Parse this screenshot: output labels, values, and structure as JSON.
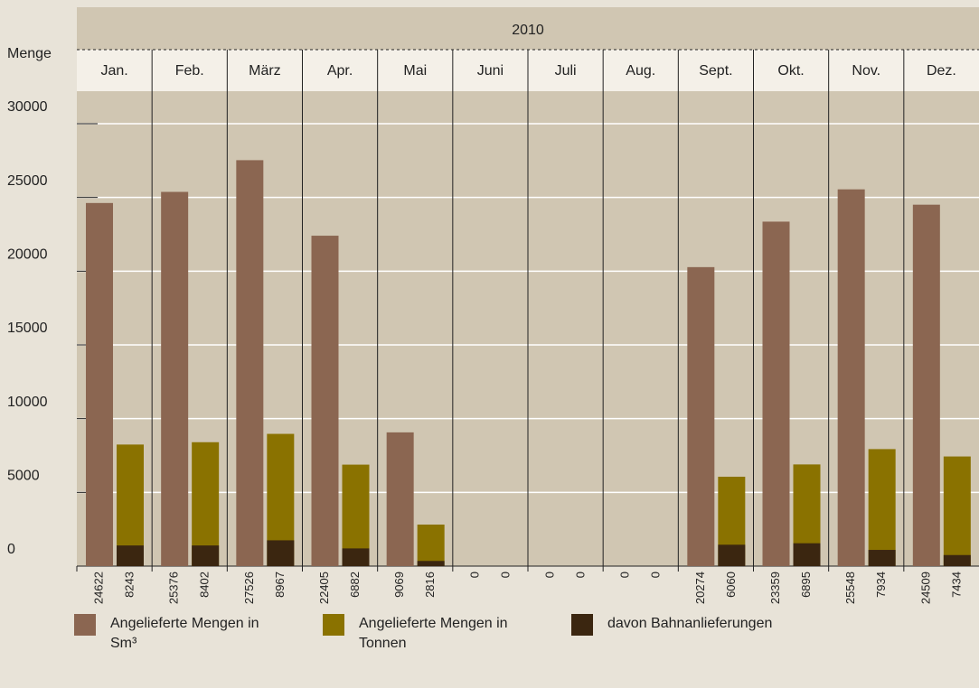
{
  "chart_data": {
    "type": "bar",
    "period": "2010",
    "ylabel": "Menge",
    "categories": [
      "Jan.",
      "Feb.",
      "März",
      "Apr.",
      "Mai",
      "Juni",
      "Juli",
      "Aug.",
      "Sept.",
      "Okt.",
      "Nov.",
      "Dez."
    ],
    "series": [
      {
        "name": "Angelieferte Mengen in Sm³",
        "color": "#8b6651",
        "values": [
          24622,
          25376,
          27526,
          22405,
          9069,
          0,
          0,
          0,
          20274,
          23359,
          25548,
          24509
        ]
      },
      {
        "name": "Angelieferte Mengen in Tonnen",
        "color": "#8a7200",
        "values": [
          8243,
          8402,
          8967,
          6882,
          2816,
          0,
          0,
          0,
          6060,
          6895,
          7934,
          7434
        ]
      },
      {
        "name": "davon Bahnanlieferungen",
        "color": "#3b2610",
        "values": [
          1400,
          1400,
          1750,
          1200,
          350,
          0,
          0,
          0,
          1450,
          1550,
          1100,
          750
        ]
      }
    ],
    "ylim": [
      0,
      30000
    ],
    "yticks": [
      0,
      5000,
      10000,
      15000,
      20000,
      25000,
      30000
    ],
    "grid": true
  }
}
